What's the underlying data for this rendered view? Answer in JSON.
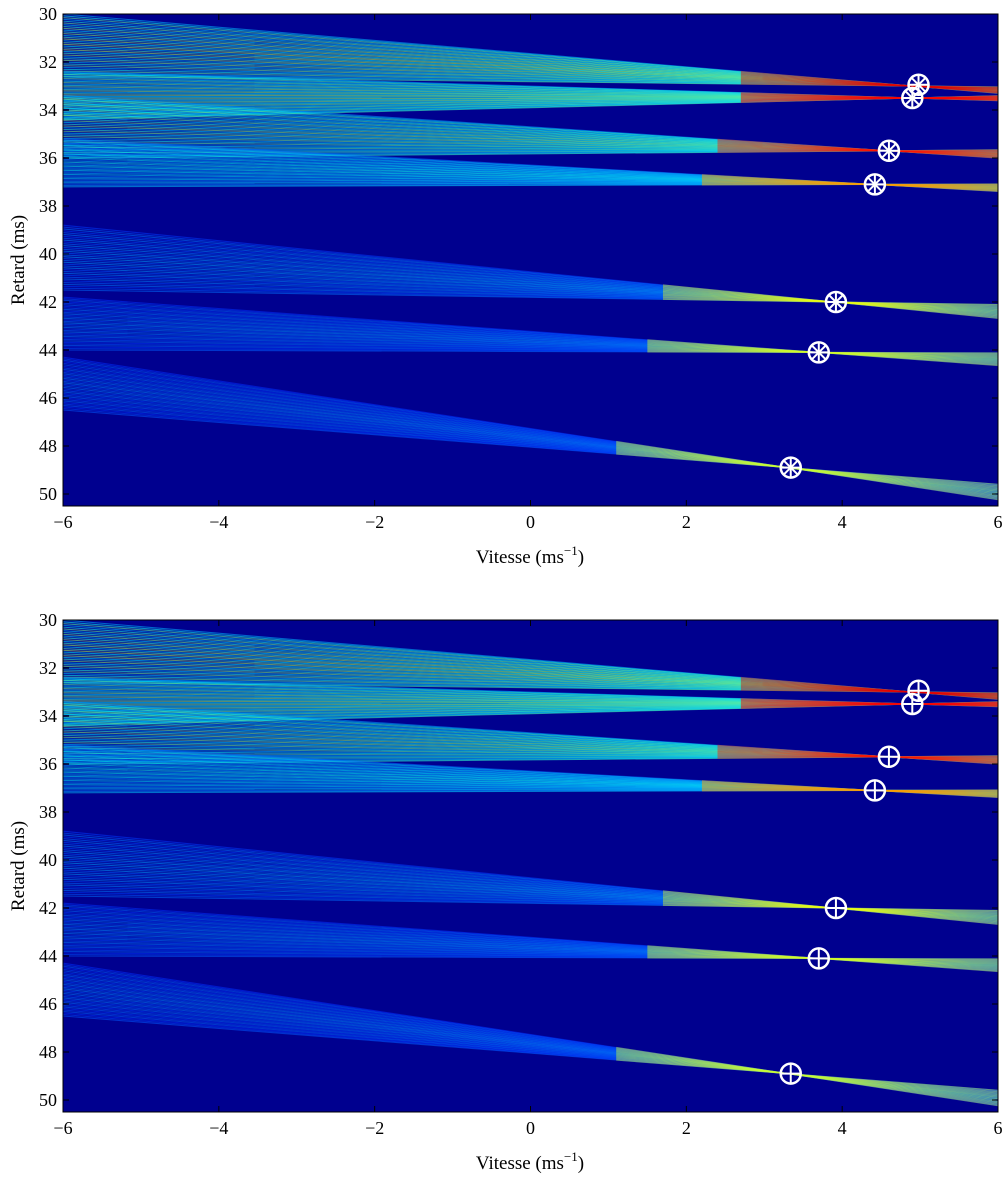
{
  "chart_data": [
    {
      "type": "heatmap",
      "colormap": "jet",
      "xlabel": "Vitesse (ms",
      "xlabel_superscript": "−1",
      "xlabel_suffix": ")",
      "ylabel": "Retard (ms)",
      "xlim": [
        -6,
        6
      ],
      "ylim": [
        50.5,
        30
      ],
      "y_reversed": true,
      "x_ticks": [
        -6,
        -4,
        -2,
        0,
        2,
        4,
        6
      ],
      "x_tick_labels": [
        "−6",
        "−4",
        "−2",
        "0",
        "2",
        "4",
        "6"
      ],
      "y_ticks": [
        30,
        32,
        34,
        36,
        38,
        40,
        42,
        44,
        46,
        48,
        50
      ],
      "y_tick_labels": [
        "30",
        "32",
        "34",
        "36",
        "38",
        "40",
        "42",
        "44",
        "46",
        "48",
        "50"
      ],
      "fan_beams": [
        {
          "focus_x": 4.9,
          "focus_y": 33.0,
          "y_at_left_min": 30.0,
          "y_at_left_max": 32.6,
          "intensity": 1.0
        },
        {
          "focus_x": 4.9,
          "focus_y": 33.5,
          "y_at_left_min": 32.4,
          "y_at_left_max": 34.4,
          "intensity": 0.95
        },
        {
          "focus_x": 4.6,
          "focus_y": 35.7,
          "y_at_left_min": 33.4,
          "y_at_left_max": 36.0,
          "intensity": 0.9
        },
        {
          "focus_x": 4.4,
          "focus_y": 37.1,
          "y_at_left_min": 35.2,
          "y_at_left_max": 37.2,
          "intensity": 0.6
        },
        {
          "focus_x": 3.9,
          "focus_y": 42.0,
          "y_at_left_min": 38.8,
          "y_at_left_max": 41.5,
          "intensity": 0.35
        },
        {
          "focus_x": 3.7,
          "focus_y": 44.1,
          "y_at_left_min": 41.8,
          "y_at_left_max": 44.0,
          "intensity": 0.3
        },
        {
          "focus_x": 3.3,
          "focus_y": 48.9,
          "y_at_left_min": 44.3,
          "y_at_left_max": 46.5,
          "intensity": 0.28
        }
      ],
      "markers": [
        {
          "marker": "circle-asterisk",
          "x": 4.98,
          "y": 32.95
        },
        {
          "marker": "circle-asterisk",
          "x": 4.9,
          "y": 33.5
        },
        {
          "marker": "circle-asterisk",
          "x": 4.6,
          "y": 35.7
        },
        {
          "marker": "circle-asterisk",
          "x": 4.42,
          "y": 37.1
        },
        {
          "marker": "circle-asterisk",
          "x": 3.92,
          "y": 42.0
        },
        {
          "marker": "circle-asterisk",
          "x": 3.7,
          "y": 44.1
        },
        {
          "marker": "circle-asterisk",
          "x": 3.34,
          "y": 48.9
        }
      ]
    },
    {
      "type": "heatmap",
      "colormap": "jet",
      "xlabel": "Vitesse (ms",
      "xlabel_superscript": "−1",
      "xlabel_suffix": ")",
      "ylabel": "Retard (ms)",
      "xlim": [
        -6,
        6
      ],
      "ylim": [
        50.5,
        30
      ],
      "y_reversed": true,
      "x_ticks": [
        -6,
        -4,
        -2,
        0,
        2,
        4,
        6
      ],
      "x_tick_labels": [
        "−6",
        "−4",
        "−2",
        "0",
        "2",
        "4",
        "6"
      ],
      "y_ticks": [
        30,
        32,
        34,
        36,
        38,
        40,
        42,
        44,
        46,
        48,
        50
      ],
      "y_tick_labels": [
        "30",
        "32",
        "34",
        "36",
        "38",
        "40",
        "42",
        "44",
        "46",
        "48",
        "50"
      ],
      "fan_beams": [
        {
          "focus_x": 4.9,
          "focus_y": 33.0,
          "y_at_left_min": 30.0,
          "y_at_left_max": 32.6,
          "intensity": 1.0
        },
        {
          "focus_x": 4.9,
          "focus_y": 33.5,
          "y_at_left_min": 32.4,
          "y_at_left_max": 34.4,
          "intensity": 0.95
        },
        {
          "focus_x": 4.6,
          "focus_y": 35.7,
          "y_at_left_min": 33.4,
          "y_at_left_max": 36.0,
          "intensity": 0.9
        },
        {
          "focus_x": 4.4,
          "focus_y": 37.1,
          "y_at_left_min": 35.2,
          "y_at_left_max": 37.2,
          "intensity": 0.6
        },
        {
          "focus_x": 3.9,
          "focus_y": 42.0,
          "y_at_left_min": 38.8,
          "y_at_left_max": 41.5,
          "intensity": 0.35
        },
        {
          "focus_x": 3.7,
          "focus_y": 44.1,
          "y_at_left_min": 41.8,
          "y_at_left_max": 44.0,
          "intensity": 0.3
        },
        {
          "focus_x": 3.3,
          "focus_y": 48.9,
          "y_at_left_min": 44.3,
          "y_at_left_max": 46.5,
          "intensity": 0.28
        }
      ],
      "markers": [
        {
          "marker": "circle-plus",
          "x": 4.98,
          "y": 32.95
        },
        {
          "marker": "circle-plus",
          "x": 4.9,
          "y": 33.5
        },
        {
          "marker": "circle-plus",
          "x": 4.6,
          "y": 35.7
        },
        {
          "marker": "circle-plus",
          "x": 4.42,
          "y": 37.1
        },
        {
          "marker": "circle-plus",
          "x": 3.92,
          "y": 42.0
        },
        {
          "marker": "circle-plus",
          "x": 3.7,
          "y": 44.1
        },
        {
          "marker": "circle-plus",
          "x": 3.34,
          "y": 48.9
        }
      ]
    }
  ],
  "colors": {
    "background": "#00008f",
    "marker": "#ffffff",
    "axis": "#000000"
  }
}
